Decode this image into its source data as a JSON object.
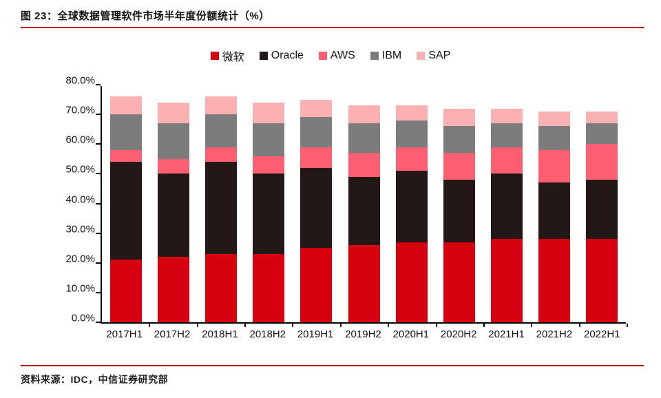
{
  "figure": {
    "title": "图 23：全球数据管理软件市场半年度份额统计（%）",
    "source": "资料来源：IDC，中信证券研究部"
  },
  "chart_data": {
    "type": "bar",
    "stacked": true,
    "title": "全球数据管理软件市场半年度份额统计（%）",
    "categories": [
      "2017H1",
      "2017H2",
      "2018H1",
      "2018H2",
      "2019H1",
      "2019H2",
      "2020H1",
      "2020H2",
      "2021H1",
      "2021H2",
      "2022H1"
    ],
    "series": [
      {
        "name": "微软",
        "color": "#d7000f",
        "values": [
          21,
          22,
          23,
          23,
          25,
          26,
          27,
          27,
          28,
          28,
          28
        ]
      },
      {
        "name": "Oracle",
        "color": "#231815",
        "values": [
          33,
          28,
          31,
          27,
          27,
          23,
          24,
          21,
          22,
          19,
          20
        ]
      },
      {
        "name": "AWS",
        "color": "#fc5f72",
        "values": [
          4,
          5,
          5,
          6,
          7,
          8,
          8,
          9,
          9,
          11,
          12
        ]
      },
      {
        "name": "IBM",
        "color": "#7c7c7c",
        "values": [
          12,
          12,
          11,
          11,
          10,
          10,
          9,
          9,
          8,
          8,
          7
        ]
      },
      {
        "name": "SAP",
        "color": "#fbb0b2",
        "values": [
          6,
          7,
          6,
          7,
          6,
          6,
          5,
          6,
          5,
          5,
          4
        ]
      }
    ],
    "xlabel": "",
    "ylabel": "",
    "ylim": [
      0,
      80
    ],
    "ytick_step": 10,
    "yticks": [
      "0.0%",
      "10.0%",
      "20.0%",
      "30.0%",
      "40.0%",
      "50.0%",
      "60.0%",
      "70.0%",
      "80.0%"
    ],
    "legend_position": "top",
    "grid": false
  }
}
